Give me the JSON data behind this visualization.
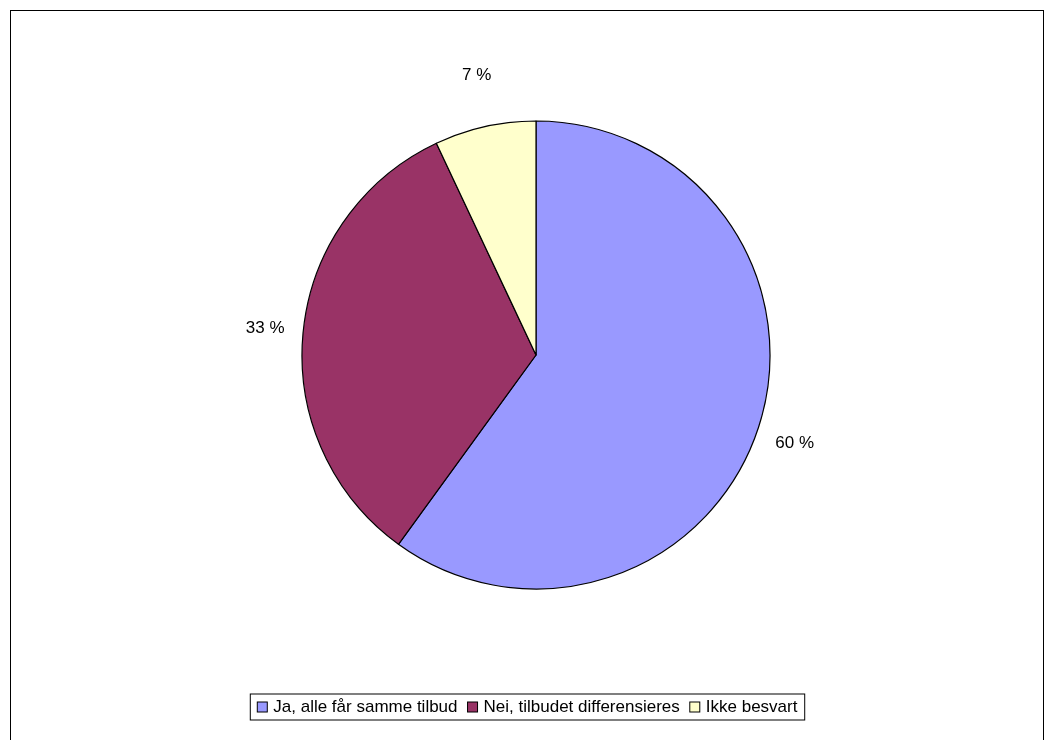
{
  "chart_data": {
    "type": "pie",
    "categories": [
      "Ja, alle får samme tilbud",
      "Nei, tilbudet differensieres",
      "Ikke besvart"
    ],
    "values": [
      60,
      33,
      7
    ],
    "colors": [
      "#9999ff",
      "#993366",
      "#ffffcc"
    ],
    "value_labels": [
      "60 %",
      "33 %",
      "7 %"
    ],
    "legend": "bottom"
  }
}
